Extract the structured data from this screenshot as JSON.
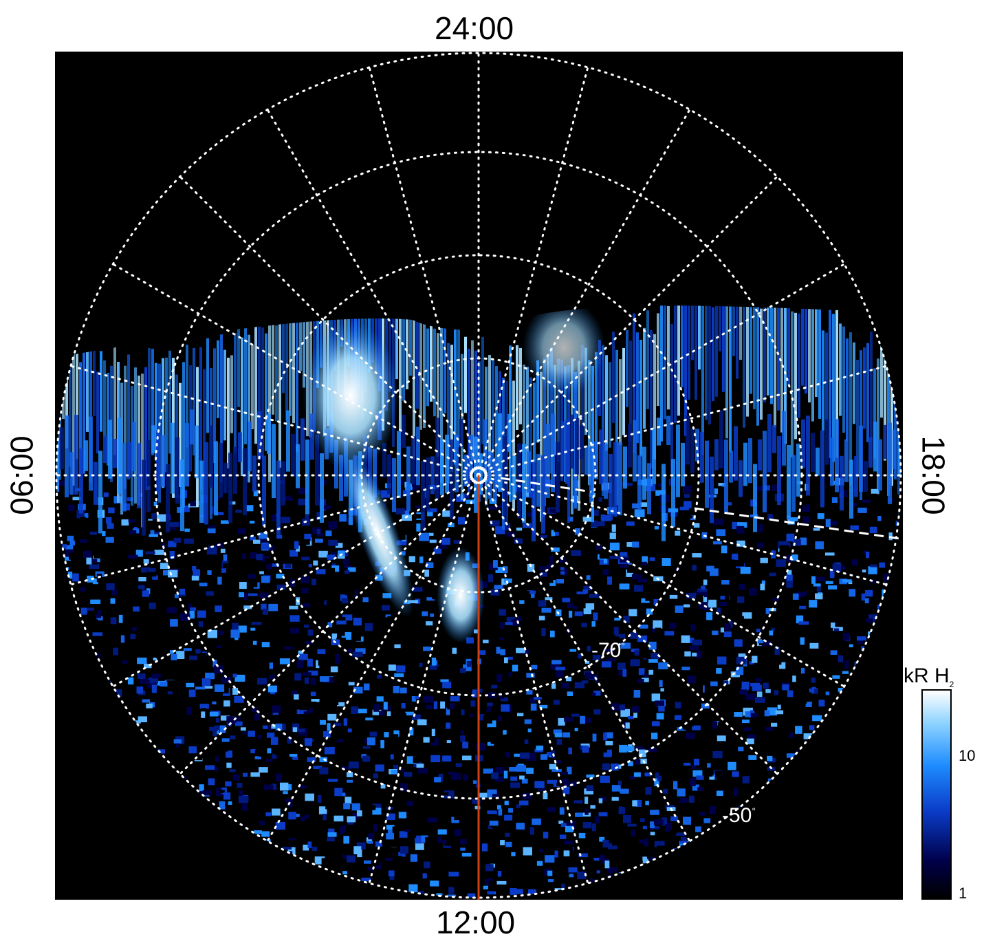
{
  "local_time_labels": {
    "top": "24:00",
    "bottom": "12:00",
    "left": "06:00",
    "right": "18:00"
  },
  "latitude_labels": {
    "inner": "-70",
    "outer": "-50",
    "degree_symbol": "°"
  },
  "colorbar": {
    "title_main": "kR H",
    "title_sub": "2",
    "ticks": [
      "10",
      "1"
    ],
    "scale": "log",
    "colors": [
      "#000000",
      "#00004a",
      "#0a3cc8",
      "#1e8cff",
      "#8cd2ff",
      "#ffffff"
    ]
  },
  "colors": {
    "background": "#000000",
    "grid": "#ffffff",
    "meridian_line": "#d04010",
    "outer_frame": "#ffffff"
  }
}
